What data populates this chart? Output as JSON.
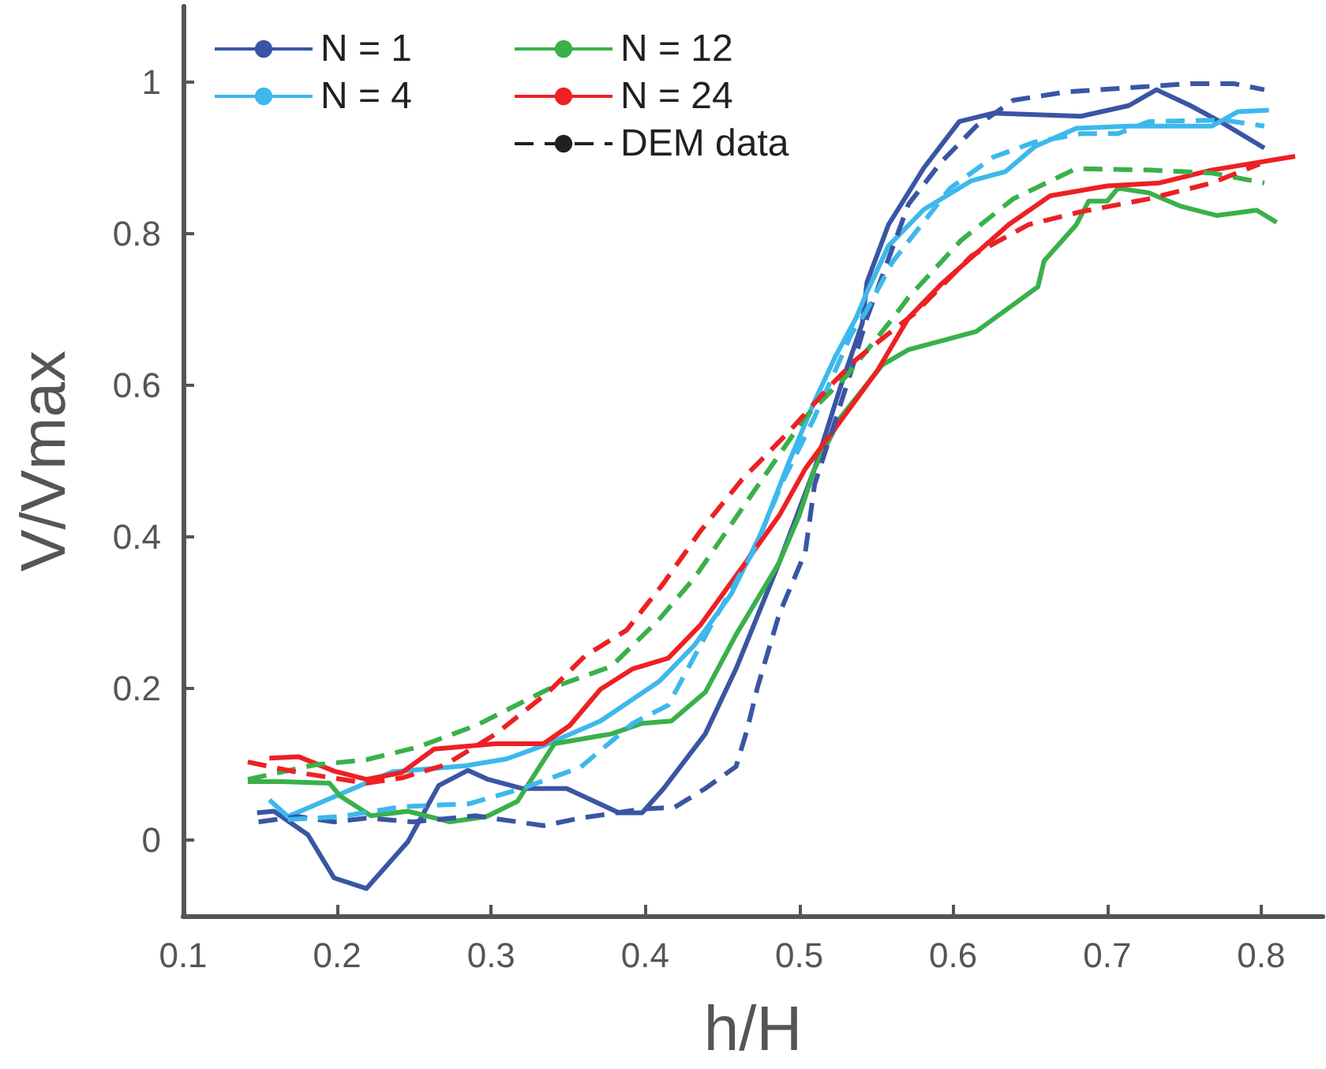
{
  "chart_data": {
    "type": "line",
    "xlabel": "h/H",
    "ylabel": "V/Vmax",
    "xlim": [
      0.1,
      0.84
    ],
    "xticks": [
      0.1,
      0.2,
      0.3,
      0.4,
      0.5,
      0.6,
      0.7,
      0.8
    ],
    "ylim": [
      -0.1,
      1.1
    ],
    "yticks": [
      0,
      0.2,
      0.4,
      0.6,
      0.8,
      1
    ],
    "grid": false,
    "legend": "top left",
    "marker": "none",
    "series": [
      {
        "name": "N = 1",
        "color": "#3a55a4",
        "line_style": "solid",
        "x": [
          0.148,
          0.159,
          0.181,
          0.198,
          0.219,
          0.246,
          0.266,
          0.285,
          0.298,
          0.32,
          0.349,
          0.383,
          0.398,
          0.412,
          0.439,
          0.459,
          0.487,
          0.51,
          0.527,
          0.541,
          0.544,
          0.558,
          0.581,
          0.604,
          0.626,
          0.683,
          0.714,
          0.732,
          0.754,
          0.775,
          0.802
        ],
        "values": [
          0.036,
          0.038,
          0.007,
          -0.05,
          -0.064,
          -0.002,
          0.072,
          0.092,
          0.08,
          0.068,
          0.068,
          0.036,
          0.036,
          0.068,
          0.14,
          0.226,
          0.366,
          0.49,
          0.599,
          0.682,
          0.736,
          0.812,
          0.887,
          0.948,
          0.959,
          0.955,
          0.969,
          0.99,
          0.969,
          0.946,
          0.913
        ]
      },
      {
        "name": "N = 4",
        "color": "#3db8ec",
        "line_style": "solid",
        "x": [
          0.156,
          0.168,
          0.236,
          0.283,
          0.31,
          0.337,
          0.371,
          0.409,
          0.432,
          0.456,
          0.476,
          0.493,
          0.51,
          0.524,
          0.537,
          0.544,
          0.558,
          0.581,
          0.612,
          0.634,
          0.653,
          0.68,
          0.714,
          0.768,
          0.785,
          0.805
        ],
        "values": [
          0.053,
          0.031,
          0.09,
          0.098,
          0.107,
          0.127,
          0.157,
          0.209,
          0.257,
          0.325,
          0.408,
          0.497,
          0.579,
          0.64,
          0.689,
          0.723,
          0.784,
          0.832,
          0.87,
          0.882,
          0.915,
          0.939,
          0.942,
          0.942,
          0.961,
          0.963
        ]
      },
      {
        "name": "N = 12",
        "color": "#3ab04a",
        "line_style": "solid",
        "x": [
          0.142,
          0.164,
          0.195,
          0.202,
          0.222,
          0.246,
          0.273,
          0.297,
          0.317,
          0.341,
          0.378,
          0.398,
          0.417,
          0.439,
          0.459,
          0.487,
          0.5,
          0.51,
          0.527,
          0.554,
          0.571,
          0.615,
          0.655,
          0.659,
          0.68,
          0.688,
          0.7,
          0.707,
          0.727,
          0.748,
          0.771,
          0.797,
          0.81
        ],
        "values": [
          0.077,
          0.077,
          0.075,
          0.058,
          0.032,
          0.038,
          0.024,
          0.031,
          0.051,
          0.127,
          0.14,
          0.154,
          0.157,
          0.195,
          0.271,
          0.366,
          0.428,
          0.49,
          0.558,
          0.627,
          0.647,
          0.671,
          0.73,
          0.764,
          0.812,
          0.843,
          0.843,
          0.86,
          0.854,
          0.836,
          0.824,
          0.831,
          0.815
        ]
      },
      {
        "name": "N = 24",
        "color": "#ed2024",
        "line_style": "solid",
        "x": [
          0.156,
          0.175,
          0.198,
          0.219,
          0.242,
          0.263,
          0.303,
          0.334,
          0.351,
          0.371,
          0.392,
          0.415,
          0.436,
          0.463,
          0.487,
          0.504,
          0.524,
          0.551,
          0.571,
          0.592,
          0.636,
          0.663,
          0.7,
          0.734,
          0.768,
          0.822
        ],
        "values": [
          0.108,
          0.11,
          0.091,
          0.08,
          0.089,
          0.12,
          0.127,
          0.127,
          0.151,
          0.199,
          0.226,
          0.24,
          0.284,
          0.36,
          0.428,
          0.49,
          0.545,
          0.62,
          0.689,
          0.733,
          0.812,
          0.85,
          0.863,
          0.867,
          0.884,
          0.902
        ]
      },
      {
        "color": "#3a55a4",
        "line_style": "dashed",
        "x": [
          0.149,
          0.175,
          0.198,
          0.219,
          0.249,
          0.29,
          0.334,
          0.358,
          0.398,
          0.419,
          0.439,
          0.459,
          0.466,
          0.473,
          0.487,
          0.504,
          0.51,
          0.534,
          0.544,
          0.571,
          0.592,
          0.615,
          0.639,
          0.673,
          0.717,
          0.754,
          0.782,
          0.802
        ],
        "values": [
          0.024,
          0.031,
          0.024,
          0.029,
          0.024,
          0.032,
          0.019,
          0.029,
          0.041,
          0.043,
          0.068,
          0.097,
          0.144,
          0.202,
          0.298,
          0.38,
          0.469,
          0.62,
          0.689,
          0.839,
          0.894,
          0.942,
          0.976,
          0.987,
          0.993,
          0.998,
          0.998,
          0.99
        ]
      },
      {
        "color": "#3db8ec",
        "line_style": "dashed",
        "x": [
          0.168,
          0.202,
          0.242,
          0.286,
          0.32,
          0.358,
          0.392,
          0.415,
          0.443,
          0.47,
          0.49,
          0.51,
          0.534,
          0.543,
          0.561,
          0.598,
          0.626,
          0.653,
          0.683,
          0.707,
          0.727,
          0.775,
          0.802
        ],
        "values": [
          0.027,
          0.031,
          0.044,
          0.048,
          0.068,
          0.096,
          0.154,
          0.178,
          0.284,
          0.38,
          0.476,
          0.558,
          0.668,
          0.696,
          0.764,
          0.86,
          0.901,
          0.921,
          0.932,
          0.932,
          0.948,
          0.95,
          0.942
        ]
      },
      {
        "color": "#3ab04a",
        "line_style": "dashed",
        "x": [
          0.142,
          0.185,
          0.219,
          0.253,
          0.29,
          0.337,
          0.378,
          0.409,
          0.432,
          0.453,
          0.476,
          0.504,
          0.531,
          0.561,
          0.571,
          0.605,
          0.639,
          0.68,
          0.727,
          0.768,
          0.802
        ],
        "values": [
          0.08,
          0.099,
          0.106,
          0.123,
          0.151,
          0.199,
          0.229,
          0.291,
          0.346,
          0.408,
          0.476,
          0.558,
          0.613,
          0.689,
          0.716,
          0.791,
          0.846,
          0.886,
          0.884,
          0.88,
          0.867
        ]
      },
      {
        "color": "#ed2024",
        "line_style": "dashed",
        "x": [
          0.142,
          0.175,
          0.219,
          0.242,
          0.27,
          0.303,
          0.337,
          0.361,
          0.388,
          0.412,
          0.436,
          0.463,
          0.493,
          0.52,
          0.537,
          0.558,
          0.575,
          0.612,
          0.649,
          0.683,
          0.727,
          0.768,
          0.799
        ],
        "values": [
          0.103,
          0.089,
          0.075,
          0.082,
          0.099,
          0.14,
          0.195,
          0.243,
          0.277,
          0.339,
          0.408,
          0.476,
          0.538,
          0.599,
          0.634,
          0.668,
          0.695,
          0.771,
          0.812,
          0.829,
          0.846,
          0.867,
          0.892
        ]
      },
      {
        "name": "DEM data",
        "color": "#231f20",
        "line_style": "dashed"
      }
    ]
  }
}
